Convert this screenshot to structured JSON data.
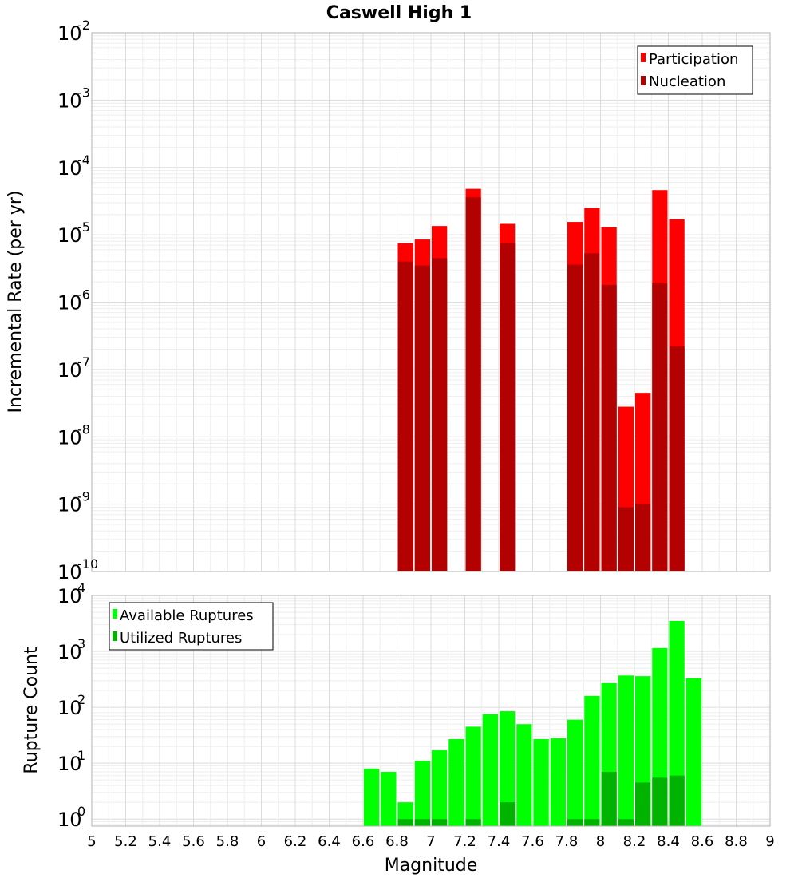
{
  "chart_data": [
    {
      "type": "bar",
      "title": "Caswell High 1",
      "xlabel": "Magnitude",
      "ylabel": "Incremental Rate (per yr)",
      "yscale": "log",
      "ylim": [
        1e-10,
        0.01
      ],
      "xlim": [
        5,
        9
      ],
      "bar_width": 0.1,
      "grid": true,
      "legend_position": "top-right",
      "y_ticks": [
        {
          "base": "10",
          "exp": "-2"
        },
        {
          "base": "10",
          "exp": "-3"
        },
        {
          "base": "10",
          "exp": "-4"
        },
        {
          "base": "10",
          "exp": "-5"
        },
        {
          "base": "10",
          "exp": "-6"
        },
        {
          "base": "10",
          "exp": "-7"
        },
        {
          "base": "10",
          "exp": "-8"
        },
        {
          "base": "10",
          "exp": "-9"
        },
        {
          "base": "10",
          "exp": "-10"
        }
      ],
      "series": [
        {
          "name": "Participation",
          "color": "#ff0000",
          "x": [
            6.85,
            6.95,
            7.05,
            7.25,
            7.45,
            7.85,
            7.95,
            8.05,
            8.15,
            8.25,
            8.35,
            8.45
          ],
          "values": [
            7.5e-06,
            8.5e-06,
            1.35e-05,
            4.8e-05,
            1.45e-05,
            1.55e-05,
            2.5e-05,
            1.3e-05,
            2.8e-08,
            4.5e-08,
            4.6e-05,
            1.7e-05
          ]
        },
        {
          "name": "Nucleation",
          "color": "#b30000",
          "x": [
            6.85,
            6.95,
            7.05,
            7.25,
            7.45,
            7.85,
            7.95,
            8.05,
            8.15,
            8.25,
            8.35,
            8.45
          ],
          "values": [
            4e-06,
            3.5e-06,
            4.5e-06,
            3.6e-05,
            7.5e-06,
            3.6e-06,
            5.3e-06,
            1.8e-06,
            9e-10,
            1e-09,
            1.9e-06,
            2.2e-07
          ]
        }
      ]
    },
    {
      "type": "bar",
      "xlabel": "Magnitude",
      "ylabel": "Rupture Count",
      "yscale": "log",
      "ylim": [
        0.75,
        10000.0
      ],
      "xlim": [
        5,
        9
      ],
      "bar_width": 0.1,
      "grid": true,
      "legend_position": "top-left",
      "x_ticks": [
        "5",
        "5.2",
        "5.4",
        "5.6",
        "5.8",
        "6",
        "6.2",
        "6.4",
        "6.6",
        "6.8",
        "7",
        "7.2",
        "7.4",
        "7.6",
        "7.8",
        "8",
        "8.2",
        "8.4",
        "8.6",
        "8.8",
        "9"
      ],
      "y_ticks": [
        {
          "base": "10",
          "exp": "4"
        },
        {
          "base": "10",
          "exp": "3"
        },
        {
          "base": "10",
          "exp": "2"
        },
        {
          "base": "10",
          "exp": "1"
        },
        {
          "base": "10",
          "exp": "0"
        }
      ],
      "series": [
        {
          "name": "Available Ruptures",
          "color": "#00ff00",
          "x": [
            6.65,
            6.75,
            6.85,
            6.95,
            7.05,
            7.15,
            7.25,
            7.35,
            7.45,
            7.55,
            7.65,
            7.75,
            7.85,
            7.95,
            8.05,
            8.15,
            8.25,
            8.35,
            8.45,
            8.55
          ],
          "values": [
            8,
            7,
            2,
            11,
            17,
            27,
            45,
            75,
            85,
            50,
            27,
            28,
            60,
            160,
            270,
            370,
            360,
            1150,
            3500,
            330
          ]
        },
        {
          "name": "Utilized Ruptures",
          "color": "#00b300",
          "x": [
            6.85,
            6.95,
            7.05,
            7.25,
            7.45,
            7.85,
            7.95,
            8.05,
            8.15,
            8.25,
            8.35,
            8.45
          ],
          "values": [
            1,
            1,
            1,
            1,
            2,
            1,
            1,
            7,
            1,
            4.5,
            5.5,
            6
          ]
        }
      ]
    }
  ]
}
